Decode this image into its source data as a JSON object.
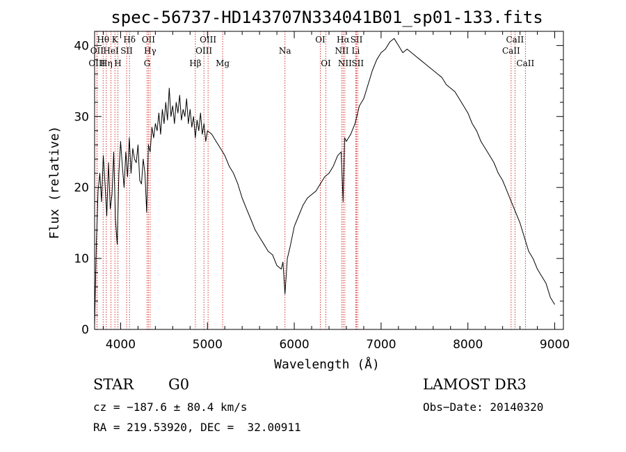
{
  "chart_data": {
    "type": "line",
    "title": "spec-56737-HD143707N334041B01_sp01-133.fits",
    "xlabel": "Wavelength (Å)",
    "ylabel": "Flux (relative)",
    "xlim": [
      3700,
      9100
    ],
    "ylim": [
      0,
      42
    ],
    "xticks": [
      4000,
      5000,
      6000,
      7000,
      8000,
      9000
    ],
    "yticks": [
      0,
      10,
      20,
      30,
      40
    ],
    "series": [
      {
        "name": "flux",
        "x": [
          3700,
          3720,
          3740,
          3760,
          3780,
          3800,
          3820,
          3840,
          3860,
          3880,
          3900,
          3920,
          3940,
          3960,
          3980,
          4000,
          4020,
          4040,
          4060,
          4080,
          4100,
          4120,
          4140,
          4160,
          4180,
          4200,
          4220,
          4240,
          4260,
          4280,
          4300,
          4320,
          4340,
          4360,
          4380,
          4400,
          4420,
          4440,
          4460,
          4480,
          4500,
          4520,
          4540,
          4560,
          4580,
          4600,
          4620,
          4640,
          4660,
          4680,
          4700,
          4720,
          4740,
          4760,
          4780,
          4800,
          4820,
          4840,
          4860,
          4880,
          4900,
          4920,
          4940,
          4960,
          4980,
          5000,
          5050,
          5100,
          5150,
          5200,
          5250,
          5300,
          5350,
          5400,
          5450,
          5500,
          5550,
          5600,
          5650,
          5700,
          5750,
          5800,
          5850,
          5870,
          5893,
          5920,
          5950,
          6000,
          6050,
          6100,
          6150,
          6200,
          6250,
          6300,
          6350,
          6400,
          6450,
          6500,
          6540,
          6563,
          6580,
          6600,
          6650,
          6700,
          6750,
          6800,
          6850,
          6900,
          6950,
          7000,
          7050,
          7100,
          7150,
          7200,
          7250,
          7300,
          7350,
          7400,
          7450,
          7500,
          7550,
          7600,
          7650,
          7700,
          7750,
          7800,
          7850,
          7900,
          7950,
          8000,
          8050,
          8100,
          8150,
          8200,
          8250,
          8300,
          8350,
          8400,
          8450,
          8500,
          8550,
          8600,
          8650,
          8700,
          8750,
          8800,
          8850,
          8900,
          8950,
          9000
        ],
        "values": [
          0.5,
          12.0,
          19.5,
          22.0,
          18.0,
          24.5,
          20.5,
          16.0,
          23.5,
          17.0,
          19.0,
          25.0,
          15.5,
          12.0,
          22.0,
          26.5,
          23.0,
          20.0,
          25.0,
          21.5,
          27.0,
          22.0,
          25.5,
          24.0,
          23.5,
          26.0,
          21.0,
          20.5,
          24.0,
          22.0,
          16.5,
          26.0,
          25.0,
          28.5,
          27.0,
          29.0,
          28.0,
          30.5,
          27.5,
          31.0,
          29.0,
          32.0,
          29.5,
          34.0,
          30.0,
          31.5,
          29.0,
          32.0,
          30.5,
          33.0,
          29.5,
          31.0,
          30.0,
          32.5,
          29.0,
          31.0,
          28.5,
          30.0,
          27.0,
          29.5,
          28.0,
          30.5,
          27.5,
          29.0,
          26.5,
          28.0,
          27.5,
          26.5,
          25.5,
          24.5,
          23.0,
          22.0,
          20.5,
          18.5,
          17.0,
          15.5,
          14.0,
          13.0,
          12.0,
          11.0,
          10.5,
          9.0,
          8.5,
          9.5,
          5.0,
          10.0,
          11.5,
          14.5,
          16.0,
          17.5,
          18.5,
          19.0,
          19.5,
          20.5,
          21.5,
          22.0,
          23.0,
          24.5,
          25.0,
          18.0,
          27.0,
          26.5,
          27.5,
          29.0,
          31.5,
          32.5,
          34.5,
          36.5,
          38.0,
          39.0,
          39.5,
          40.5,
          41.0,
          40.0,
          39.0,
          39.5,
          39.0,
          38.5,
          38.0,
          37.5,
          37.0,
          36.5,
          36.0,
          35.5,
          34.5,
          34.0,
          33.5,
          32.5,
          31.5,
          30.5,
          29.0,
          28.0,
          26.5,
          25.5,
          24.5,
          23.5,
          22.0,
          21.0,
          19.5,
          18.0,
          16.5,
          15.0,
          13.0,
          11.0,
          10.0,
          8.5,
          7.5,
          6.5,
          4.5,
          3.5
        ]
      }
    ],
    "spectral_lines": [
      {
        "label": "Hθ",
        "wavelength": 3798,
        "row": 1
      },
      {
        "label": "K",
        "wavelength": 3934,
        "row": 1
      },
      {
        "label": "Hδ",
        "wavelength": 4102,
        "row": 1
      },
      {
        "label": "OII",
        "wavelength": 4320,
        "row": 1
      },
      {
        "label": "OIII",
        "wavelength": 5007,
        "row": 1
      },
      {
        "label": "Na",
        "wavelength": 5893,
        "row": 2
      },
      {
        "label": "OI",
        "wavelength": 6300,
        "row": 1
      },
      {
        "label": "Hα",
        "wavelength": 6563,
        "row": 1
      },
      {
        "label": "SII",
        "wavelength": 6717,
        "row": 1
      },
      {
        "label": "CaII",
        "wavelength": 8542,
        "row": 1
      },
      {
        "label": "OII",
        "wavelength": 3727,
        "row": 2
      },
      {
        "label": "HeI",
        "wavelength": 3889,
        "row": 2
      },
      {
        "label": "SII",
        "wavelength": 4069,
        "row": 2
      },
      {
        "label": "Hγ",
        "wavelength": 4340,
        "row": 2
      },
      {
        "label": "OIII",
        "wavelength": 4959,
        "row": 2
      },
      {
        "label": "NII",
        "wavelength": 6548,
        "row": 2
      },
      {
        "label": "Li",
        "wavelength": 6708,
        "row": 2
      },
      {
        "label": "CaII",
        "wavelength": 8498,
        "row": 2
      },
      {
        "label": "OIII",
        "wavelength": 3727,
        "row": 3
      },
      {
        "label": "Hη",
        "wavelength": 3835,
        "row": 3
      },
      {
        "label": "H",
        "wavelength": 3968,
        "row": 3
      },
      {
        "label": "G",
        "wavelength": 4305,
        "row": 3
      },
      {
        "label": "Hβ",
        "wavelength": 4861,
        "row": 3
      },
      {
        "label": "Mg",
        "wavelength": 5175,
        "row": 3
      },
      {
        "label": "OI",
        "wavelength": 6364,
        "row": 3
      },
      {
        "label": "NII",
        "wavelength": 6583,
        "row": 3
      },
      {
        "label": "SII",
        "wavelength": 6731,
        "row": 3
      },
      {
        "label": "CaII",
        "wavelength": 8662,
        "row": 3
      }
    ],
    "line_color": "#000000",
    "marker_color": "#cc0000"
  },
  "info": {
    "star_type": "STAR",
    "spec_class": "G0",
    "survey": "LAMOST DR3",
    "cz": "cz = −187.6 ± 80.4 km/s",
    "obs_date": "Obs−Date: 20140320",
    "radec": "RA = 219.53920, DEC =  32.00911"
  }
}
